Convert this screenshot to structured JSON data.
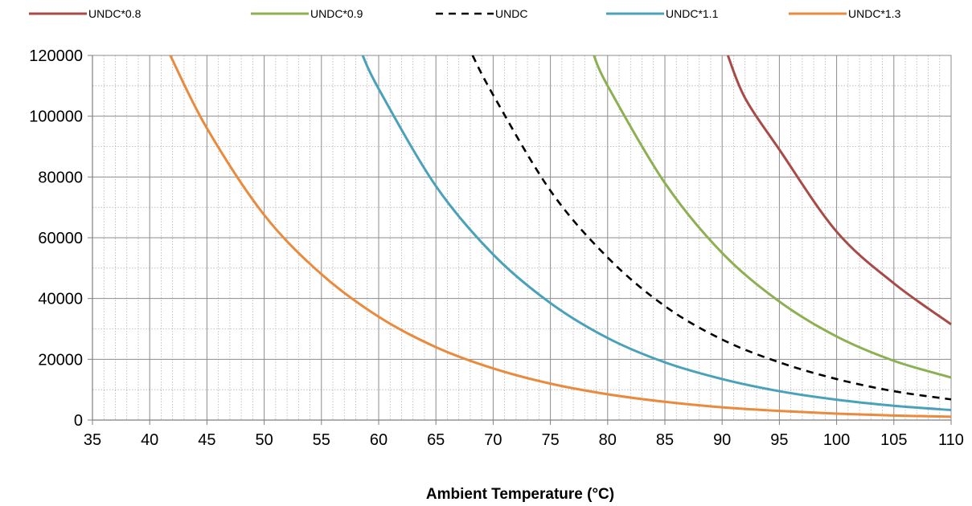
{
  "chart_data": {
    "type": "line",
    "title": "",
    "xlabel": "Ambient Temperature (°C)",
    "ylabel": "",
    "xlim": [
      35,
      110
    ],
    "ylim": [
      0,
      120000
    ],
    "x_ticks": [
      35,
      40,
      45,
      50,
      55,
      60,
      65,
      70,
      75,
      80,
      85,
      90,
      95,
      100,
      105,
      110
    ],
    "y_ticks": [
      0,
      20000,
      40000,
      60000,
      80000,
      100000,
      120000
    ],
    "grid": true,
    "minor_grid": true,
    "legend_position": "top",
    "series": [
      {
        "name": "UNDC*0.8",
        "color": "#a84a47",
        "dashed": false,
        "x": [
          90.5,
          92,
          95,
          100,
          105,
          110
        ],
        "y": [
          120000,
          106000,
          89000,
          62000,
          45000,
          31500
        ]
      },
      {
        "name": "UNDC*0.9",
        "color": "#8db052",
        "dashed": false,
        "x": [
          78.8,
          80,
          85,
          90,
          95,
          100,
          105,
          110
        ],
        "y": [
          120000,
          110000,
          78000,
          55000,
          39000,
          27500,
          19500,
          14000
        ]
      },
      {
        "name": "UNDC",
        "color": "#000000",
        "dashed": true,
        "x": [
          68.2,
          70,
          75,
          80,
          85,
          90,
          95,
          100,
          105,
          110
        ],
        "y": [
          120000,
          107000,
          75500,
          53500,
          37500,
          26500,
          19000,
          13500,
          9500,
          6800
        ]
      },
      {
        "name": "UNDC*1.1",
        "color": "#4aa1ba",
        "dashed": false,
        "x": [
          58.6,
          60,
          65,
          70,
          75,
          80,
          85,
          90,
          95,
          100,
          105,
          110
        ],
        "y": [
          120000,
          109000,
          77000,
          54500,
          38500,
          27000,
          19000,
          13500,
          9500,
          6700,
          4700,
          3300
        ]
      },
      {
        "name": "UNDC*1.3",
        "color": "#e98a3d",
        "dashed": false,
        "x": [
          41.8,
          45,
          50,
          55,
          60,
          65,
          70,
          75,
          80,
          85,
          90,
          95,
          100,
          105,
          110
        ],
        "y": [
          120000,
          96000,
          67500,
          48000,
          34000,
          24000,
          17000,
          12000,
          8500,
          6000,
          4200,
          3000,
          2100,
          1500,
          1100
        ]
      }
    ]
  }
}
